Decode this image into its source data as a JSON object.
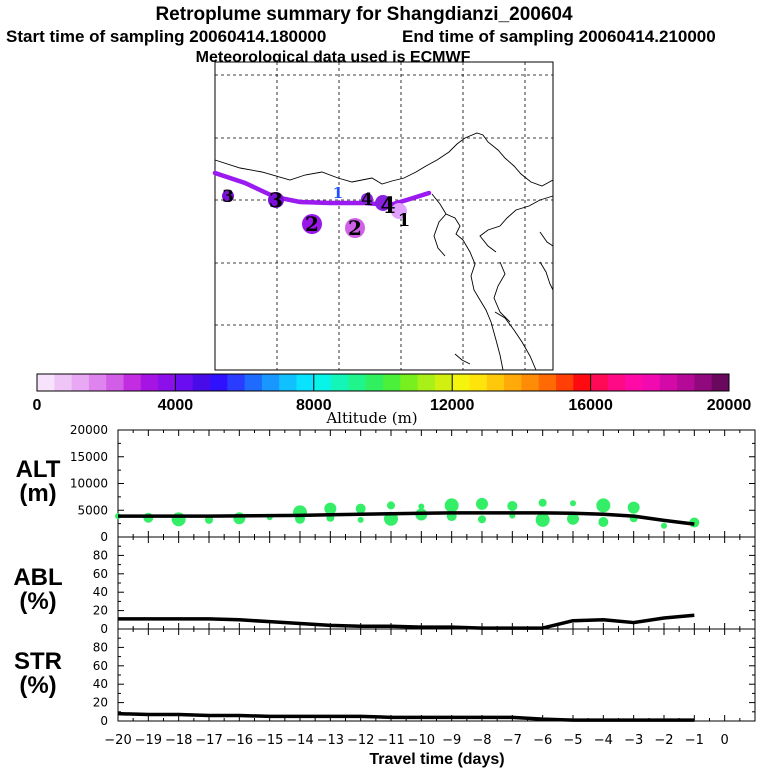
{
  "header": {
    "title": "Retroplume summary for Shangdianzi_200604",
    "start_line": "Start time of sampling 20060414.180000",
    "end_line": "End time of sampling 20060414.210000",
    "met_line": "Meteorological data used is ECMWF"
  },
  "map": {
    "trajectory_color": "#9a1af0",
    "cluster_labels": [
      {
        "text": "3",
        "color": "#7a10d8"
      },
      {
        "text": "3",
        "color": "#7a10d8"
      },
      {
        "text": "2",
        "color": "#9a18e8"
      },
      {
        "text": "2",
        "color": "#d060e8"
      },
      {
        "text": "1",
        "color": "#2050ff"
      },
      {
        "text": "4",
        "color": "#8a20e0"
      },
      {
        "text": "4",
        "color": "#8a20e0"
      },
      {
        "text": "1",
        "color": "#e0a0ff"
      }
    ]
  },
  "colorbar": {
    "tick_labels": [
      "0",
      "4000",
      "8000",
      "12000",
      "16000",
      "20000"
    ],
    "axis_label": "Altitude (m)",
    "colors": [
      "#f7e3fb",
      "#efc5f7",
      "#e8a8f3",
      "#df84ee",
      "#d25ee8",
      "#c22de2",
      "#a614e4",
      "#8b10ea",
      "#6a0df0",
      "#480ce8",
      "#2f10ff",
      "#2a3cff",
      "#1f6bff",
      "#1898ff",
      "#10c0ff",
      "#0ae3ff",
      "#08f4e8",
      "#14f5b8",
      "#20f58c",
      "#30f060",
      "#4af03a",
      "#78f020",
      "#a8f018",
      "#d2f010",
      "#f4f40c",
      "#ffe40c",
      "#ffc80a",
      "#ffaa08",
      "#ff8c06",
      "#ff6a05",
      "#ff3f05",
      "#ff0a10",
      "#ff0a55",
      "#ff0a86",
      "#ff0aa6",
      "#f00ab0",
      "#d40aa8",
      "#b50a98",
      "#900a7e",
      "#6a085e"
    ]
  },
  "chart_data": [
    {
      "type": "line",
      "title": "ALT (m)",
      "xlabel": "Travel time (days)",
      "ylabel": "ALT (m)",
      "x": [
        -20,
        -19,
        -18,
        -17,
        -16,
        -15,
        -14,
        -13,
        -12,
        -11,
        -10,
        -9,
        -8,
        -7,
        -6,
        -5,
        -4,
        -3,
        -2,
        -1
      ],
      "values": [
        3900,
        3900,
        3900,
        3900,
        3950,
        4000,
        4050,
        4150,
        4250,
        4350,
        4450,
        4500,
        4500,
        4500,
        4500,
        4450,
        4250,
        3900,
        3100,
        2400
      ],
      "ylim": [
        0,
        20000
      ],
      "yticks": [
        "0",
        "5000",
        "10000",
        "15000",
        "20000"
      ],
      "scatter_color": "#33ee66",
      "scatter_points": [
        {
          "x": -20,
          "y": 3900
        },
        {
          "x": -19,
          "y": 3600
        },
        {
          "x": -18,
          "y": 3300
        },
        {
          "x": -17,
          "y": 3200
        },
        {
          "x": -16,
          "y": 3500
        },
        {
          "x": -15,
          "y": 3700
        },
        {
          "x": -14,
          "y": 3400
        },
        {
          "x": -14,
          "y": 4600
        },
        {
          "x": -13,
          "y": 3600
        },
        {
          "x": -13,
          "y": 5300
        },
        {
          "x": -12,
          "y": 3200
        },
        {
          "x": -12,
          "y": 5300
        },
        {
          "x": -11,
          "y": 3400
        },
        {
          "x": -11,
          "y": 5900
        },
        {
          "x": -10,
          "y": 4200
        },
        {
          "x": -10,
          "y": 5700
        },
        {
          "x": -9,
          "y": 3900
        },
        {
          "x": -9,
          "y": 5900
        },
        {
          "x": -8,
          "y": 3300
        },
        {
          "x": -8,
          "y": 6200
        },
        {
          "x": -7,
          "y": 4000
        },
        {
          "x": -7,
          "y": 5800
        },
        {
          "x": -6,
          "y": 3200
        },
        {
          "x": -6,
          "y": 6400
        },
        {
          "x": -5,
          "y": 3400
        },
        {
          "x": -5,
          "y": 6300
        },
        {
          "x": -4,
          "y": 2800
        },
        {
          "x": -4,
          "y": 5900
        },
        {
          "x": -3,
          "y": 3500
        },
        {
          "x": -3,
          "y": 5500
        },
        {
          "x": -2,
          "y": 2100
        },
        {
          "x": -1,
          "y": 2700
        }
      ]
    },
    {
      "type": "line",
      "title": "ABL (%)",
      "xlabel": "Travel time (days)",
      "ylabel": "ABL (%)",
      "x": [
        -20,
        -19,
        -18,
        -17,
        -16,
        -15,
        -14,
        -13,
        -12,
        -11,
        -10,
        -9,
        -8,
        -7,
        -6,
        -5,
        -4,
        -3,
        -2,
        -1
      ],
      "values": [
        11,
        11,
        11,
        11,
        10,
        8,
        6,
        4,
        3,
        3,
        2,
        2,
        1,
        1,
        1,
        9,
        10,
        7,
        12,
        15
      ],
      "ylim": [
        0,
        100
      ],
      "yticks": [
        "0",
        "20",
        "40",
        "60",
        "80"
      ]
    },
    {
      "type": "line",
      "title": "STR (%)",
      "xlabel": "Travel time (days)",
      "ylabel": "STR (%)",
      "x": [
        -20,
        -19,
        -18,
        -17,
        -16,
        -15,
        -14,
        -13,
        -12,
        -11,
        -10,
        -9,
        -8,
        -7,
        -6,
        -5,
        -4,
        -3,
        -2,
        -1
      ],
      "values": [
        8,
        7,
        7,
        6,
        6,
        5,
        5,
        5,
        5,
        4,
        4,
        4,
        4,
        4,
        2,
        1,
        1,
        1,
        1,
        1
      ],
      "ylim": [
        0,
        100
      ],
      "yticks": [
        "0",
        "20",
        "40",
        "60",
        "80"
      ],
      "xticks": [
        "−20",
        "−19",
        "−18",
        "−17",
        "−16",
        "−15",
        "−14",
        "−13",
        "−12",
        "−11",
        "−10",
        "−9",
        "−8",
        "−7",
        "−6",
        "−5",
        "−4",
        "−3",
        "−2",
        "−1",
        "0"
      ]
    }
  ],
  "panels": {
    "alt_label_line1": "ALT",
    "alt_label_line2": "(m)",
    "abl_label_line1": "ABL",
    "abl_label_line2": "(%)",
    "str_label_line1": "STR",
    "str_label_line2": "(%)",
    "xaxis_title": "Travel time (days)"
  }
}
